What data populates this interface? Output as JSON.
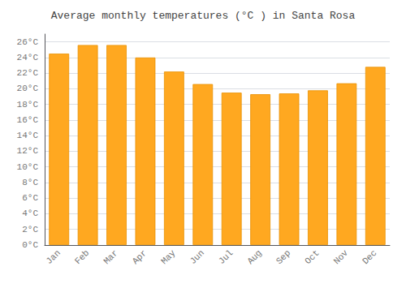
{
  "chart_data": {
    "type": "bar",
    "title": "Average monthly temperatures (°C ) in Santa Rosa",
    "categories": [
      "Jan",
      "Feb",
      "Mar",
      "Apr",
      "May",
      "Jun",
      "Jul",
      "Aug",
      "Sep",
      "Oct",
      "Nov",
      "Dec"
    ],
    "values": [
      24.5,
      25.6,
      25.6,
      24.0,
      22.2,
      20.6,
      19.5,
      19.3,
      19.4,
      19.8,
      20.7,
      22.8
    ],
    "color": "#FFA820",
    "ylim": [
      0,
      27
    ],
    "yticks": [
      {
        "value": 0,
        "label": "0°C"
      },
      {
        "value": 2,
        "label": "2°C"
      },
      {
        "value": 4,
        "label": "4°C"
      },
      {
        "value": 6,
        "label": "6°C"
      },
      {
        "value": 8,
        "label": "8°C"
      },
      {
        "value": 10,
        "label": "10°C"
      },
      {
        "value": 12,
        "label": "12°C"
      },
      {
        "value": 14,
        "label": "14°C"
      },
      {
        "value": 16,
        "label": "16°C"
      },
      {
        "value": 18,
        "label": "18°C"
      },
      {
        "value": 20,
        "label": "20°C"
      },
      {
        "value": 22,
        "label": "22°C"
      },
      {
        "value": 24,
        "label": "24°C"
      },
      {
        "value": 26,
        "label": "26°C"
      }
    ],
    "grid": true
  }
}
